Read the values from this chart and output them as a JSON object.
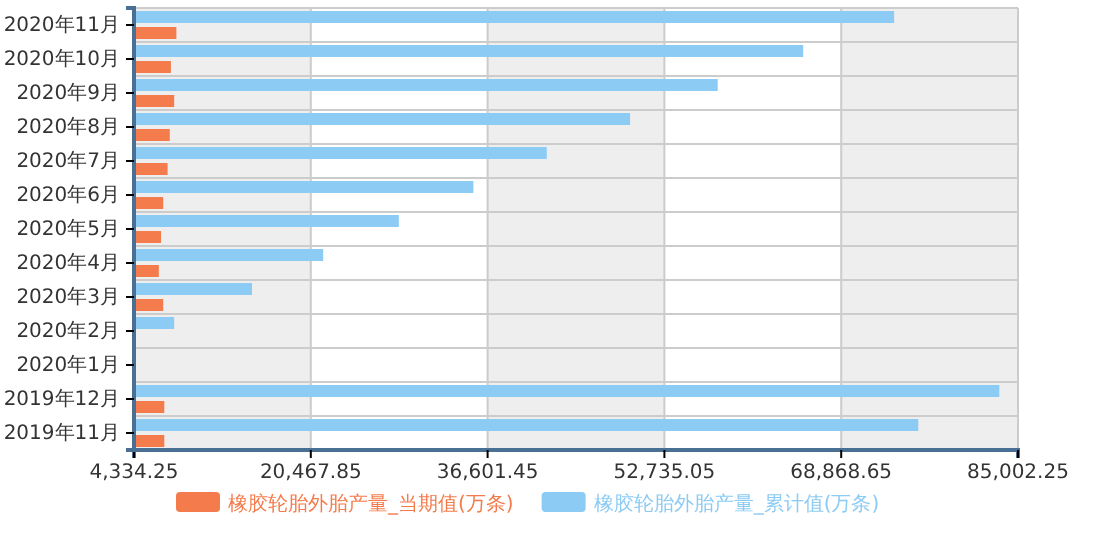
{
  "chart_data": {
    "type": "bar",
    "orientation": "horizontal",
    "categories": [
      "2020年11月",
      "2020年10月",
      "2020年9月",
      "2020年8月",
      "2020年7月",
      "2020年6月",
      "2020年5月",
      "2020年4月",
      "2020年3月",
      "2020年2月",
      "2020年1月",
      "2019年12月",
      "2019年11月"
    ],
    "series": [
      {
        "name": "橡胶轮胎外胎产量_当期值(万条)",
        "color": "#f47c4c",
        "values": [
          8200,
          7700,
          8000,
          7600,
          7400,
          7000,
          6800,
          6600,
          7000,
          null,
          null,
          7100,
          7100
        ]
      },
      {
        "name": "橡胶轮胎外胎产量_累计值(万条)",
        "color": "#8ccbf4",
        "values": [
          73700,
          65400,
          57600,
          49600,
          42000,
          35300,
          28500,
          21600,
          15100,
          8000,
          null,
          83300,
          75900
        ]
      }
    ],
    "xlim": [
      4334.25,
      85002.25
    ],
    "xticks": [
      {
        "value": 4334.25,
        "label": "4,334.25"
      },
      {
        "value": 20467.85,
        "label": "20,467.85"
      },
      {
        "value": 36601.45,
        "label": "36,601.45"
      },
      {
        "value": 52735.05,
        "label": "52,735.05"
      },
      {
        "value": 68868.65,
        "label": "68,868.65"
      },
      {
        "value": 85002.25,
        "label": "85,002.25"
      }
    ],
    "grid": true,
    "legend": "bottom"
  }
}
